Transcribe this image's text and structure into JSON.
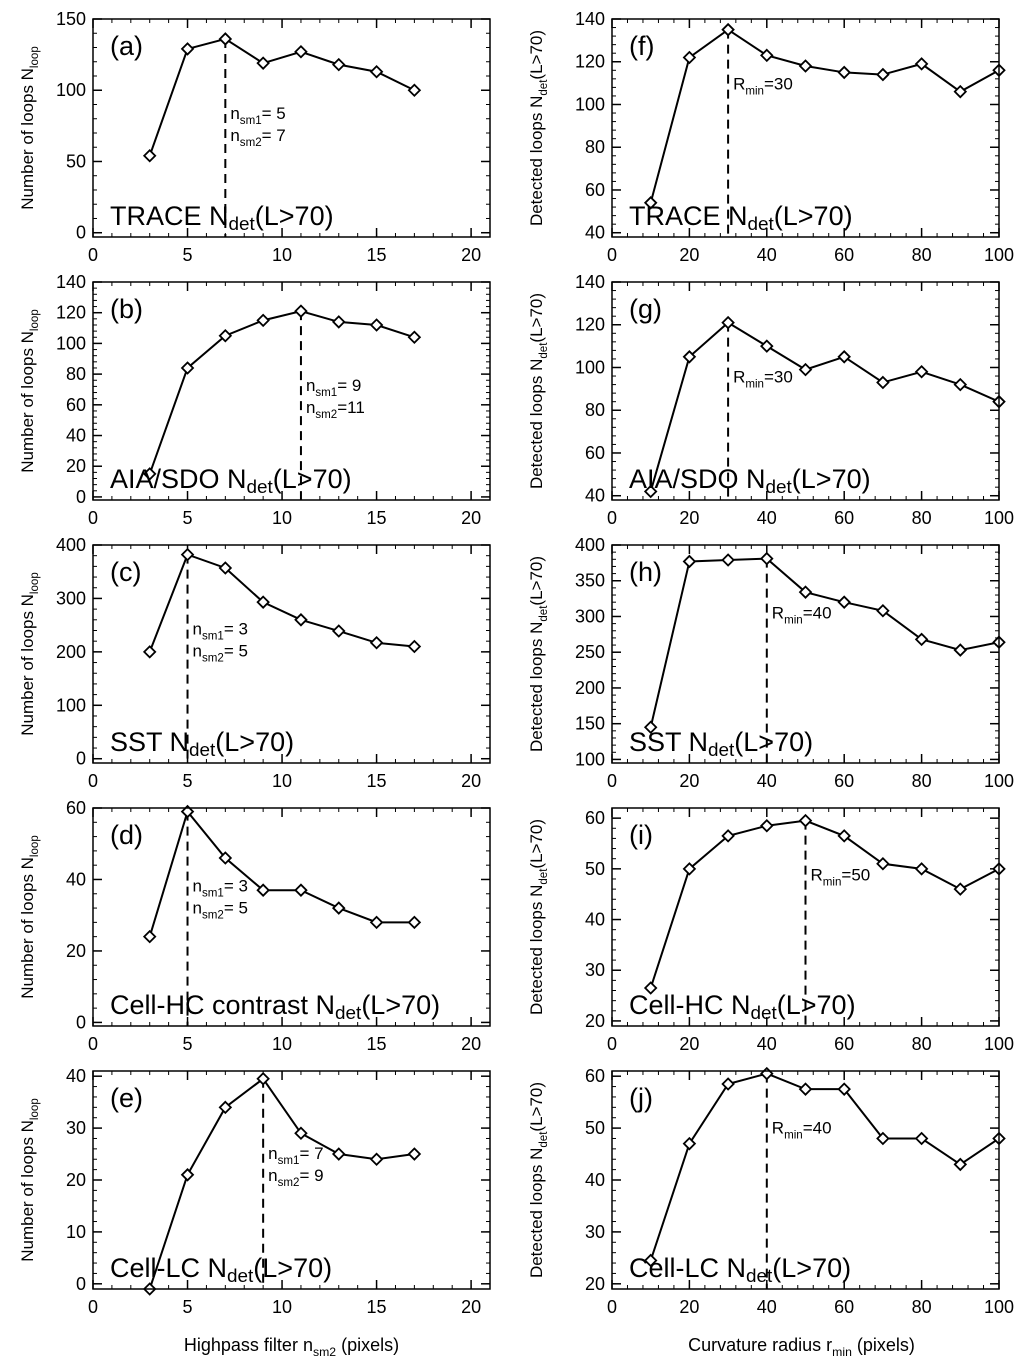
{
  "x_labels": {
    "left": {
      "text": "Highpass filter  n",
      "sub": "sm2",
      "suffix": " (pixels)"
    },
    "right": {
      "text": "Curvature radius  r",
      "sub": "min",
      "suffix": " (pixels)"
    }
  },
  "left_ylabel": {
    "text": "Number of loops  N",
    "sub": "loop"
  },
  "right_ylabel": {
    "text": "Detected loops  N",
    "sub": "det",
    "suffix": "(L>70)"
  },
  "chart_data": [
    {
      "type": "line",
      "panel": "(a)",
      "xlim": [
        0,
        21
      ],
      "xticks": [
        0,
        5,
        10,
        15,
        20
      ],
      "ylim": [
        -3,
        150
      ],
      "yticks": [
        0,
        50,
        100,
        150
      ],
      "x": [
        3,
        5,
        7,
        9,
        11,
        13,
        15,
        17
      ],
      "values": [
        54,
        129,
        136,
        119,
        127,
        118,
        113,
        100
      ],
      "marker_x": 7,
      "annotation": [
        {
          "t": "n",
          "s": "sm1",
          "r": "= 5"
        },
        {
          "t": "n",
          "s": "sm2",
          "r": "= 7"
        }
      ],
      "bottom_prefix": "TRACE  ",
      "title_n": "N",
      "title_sub": "det",
      "title_suffix": "(L>70)"
    },
    {
      "type": "line",
      "panel": "(f)",
      "xlim": [
        0,
        100
      ],
      "xticks": [
        0,
        20,
        40,
        60,
        80,
        100
      ],
      "ylim": [
        38,
        140
      ],
      "yticks": [
        40,
        60,
        80,
        100,
        120,
        140
      ],
      "x": [
        10,
        20,
        30,
        40,
        50,
        60,
        70,
        80,
        90,
        100
      ],
      "values": [
        54,
        122,
        135,
        123,
        118,
        115,
        114,
        119,
        106,
        116
      ],
      "marker_x": 30,
      "annotation": [
        {
          "t": "R",
          "s": "min",
          "r": "=30"
        }
      ],
      "bottom_prefix": "TRACE  ",
      "title_n": "N",
      "title_sub": "det",
      "title_suffix": "(L>70)"
    },
    {
      "type": "line",
      "panel": "(b)",
      "xlim": [
        0,
        21
      ],
      "xticks": [
        0,
        5,
        10,
        15,
        20
      ],
      "ylim": [
        -2,
        140
      ],
      "yticks": [
        0,
        20,
        40,
        60,
        80,
        100,
        120,
        140
      ],
      "x": [
        3,
        5,
        7,
        9,
        11,
        13,
        15,
        17
      ],
      "values": [
        15,
        84,
        105,
        115,
        121,
        114,
        112,
        104
      ],
      "marker_x": 11,
      "annotation": [
        {
          "t": "n",
          "s": "sm1",
          "r": "= 9"
        },
        {
          "t": "n",
          "s": "sm2",
          "r": "=11"
        }
      ],
      "bottom_prefix": "AIA/SDO  ",
      "title_n": "N",
      "title_sub": "det",
      "title_suffix": "(L>70)"
    },
    {
      "type": "line",
      "panel": "(g)",
      "xlim": [
        0,
        100
      ],
      "xticks": [
        0,
        20,
        40,
        60,
        80,
        100
      ],
      "ylim": [
        38,
        140
      ],
      "yticks": [
        40,
        60,
        80,
        100,
        120,
        140
      ],
      "x": [
        10,
        20,
        30,
        40,
        50,
        60,
        70,
        80,
        90,
        100
      ],
      "values": [
        42,
        105,
        121,
        110,
        99,
        105,
        93,
        98,
        92,
        84
      ],
      "marker_x": 30,
      "annotation": [
        {
          "t": "R",
          "s": "min",
          "r": "=30"
        }
      ],
      "bottom_prefix": "AIA/SDO  ",
      "title_n": "N",
      "title_sub": "det",
      "title_suffix": "(L>70)"
    },
    {
      "type": "line",
      "panel": "(c)",
      "xlim": [
        0,
        21
      ],
      "xticks": [
        0,
        5,
        10,
        15,
        20
      ],
      "ylim": [
        -8,
        400
      ],
      "yticks": [
        0,
        100,
        200,
        300,
        400
      ],
      "x": [
        3,
        5,
        7,
        9,
        11,
        13,
        15,
        17
      ],
      "values": [
        200,
        382,
        357,
        293,
        260,
        239,
        217,
        210
      ],
      "marker_x": 5,
      "annotation": [
        {
          "t": "n",
          "s": "sm1",
          "r": "= 3"
        },
        {
          "t": "n",
          "s": "sm2",
          "r": "= 5"
        }
      ],
      "bottom_prefix": "SST  ",
      "title_n": "N",
      "title_sub": "det",
      "title_suffix": "(L>70)"
    },
    {
      "type": "line",
      "panel": "(h)",
      "xlim": [
        0,
        100
      ],
      "xticks": [
        0,
        20,
        40,
        60,
        80,
        100
      ],
      "ylim": [
        95,
        400
      ],
      "yticks": [
        100,
        150,
        200,
        250,
        300,
        350,
        400
      ],
      "x": [
        10,
        20,
        30,
        40,
        50,
        60,
        70,
        80,
        90,
        100
      ],
      "values": [
        145,
        377,
        379,
        381,
        334,
        320,
        308,
        268,
        253,
        264
      ],
      "marker_x": 40,
      "annotation": [
        {
          "t": "R",
          "s": "min",
          "r": "=40"
        }
      ],
      "bottom_prefix": "SST  ",
      "title_n": "N",
      "title_sub": "det",
      "title_suffix": "(L>70)"
    },
    {
      "type": "line",
      "panel": "(d)",
      "xlim": [
        0,
        21
      ],
      "xticks": [
        0,
        5,
        10,
        15,
        20
      ],
      "ylim": [
        -1,
        60
      ],
      "yticks": [
        0,
        20,
        40,
        60
      ],
      "x": [
        3,
        5,
        7,
        9,
        11,
        13,
        15,
        17
      ],
      "values": [
        24,
        59,
        46,
        37,
        37,
        32,
        28,
        28
      ],
      "marker_x": 5,
      "annotation": [
        {
          "t": "n",
          "s": "sm1",
          "r": "= 3"
        },
        {
          "t": "n",
          "s": "sm2",
          "r": "= 5"
        }
      ],
      "bottom_prefix": "Cell-HC  contrast  ",
      "title_n": "N",
      "title_sub": "det",
      "title_suffix": "(L>70)"
    },
    {
      "type": "line",
      "panel": "(i)",
      "xlim": [
        0,
        100
      ],
      "xticks": [
        0,
        20,
        40,
        60,
        80,
        100
      ],
      "ylim": [
        19,
        62
      ],
      "yticks": [
        20,
        30,
        40,
        50,
        60
      ],
      "x": [
        10,
        20,
        30,
        40,
        50,
        60,
        70,
        80,
        90,
        100
      ],
      "values": [
        26.5,
        50,
        56.5,
        58.5,
        59.5,
        56.5,
        51,
        50,
        46,
        50
      ],
      "marker_x": 50,
      "annotation": [
        {
          "t": "R",
          "s": "min",
          "r": "=50"
        }
      ],
      "bottom_prefix": "Cell-HC  ",
      "title_n": "N",
      "title_sub": "det",
      "title_suffix": "(L>70)"
    },
    {
      "type": "line",
      "panel": "(e)",
      "xlim": [
        0,
        21
      ],
      "xticks": [
        0,
        5,
        10,
        15,
        20
      ],
      "ylim": [
        -1,
        41
      ],
      "yticks": [
        0,
        10,
        20,
        30,
        40
      ],
      "x": [
        3,
        5,
        7,
        9,
        11,
        13,
        15,
        17
      ],
      "values": [
        -1,
        21,
        34,
        39.5,
        29,
        25,
        24,
        25
      ],
      "marker_x": 9,
      "annotation": [
        {
          "t": "n",
          "s": "sm1",
          "r": "= 7"
        },
        {
          "t": "n",
          "s": "sm2",
          "r": "= 9"
        }
      ],
      "bottom_prefix": "Cell-LC  ",
      "title_n": "N",
      "title_sub": "det",
      "title_suffix": "(L>70)"
    },
    {
      "type": "line",
      "panel": "(j)",
      "xlim": [
        0,
        100
      ],
      "xticks": [
        0,
        20,
        40,
        60,
        80,
        100
      ],
      "ylim": [
        19,
        61
      ],
      "yticks": [
        20,
        30,
        40,
        50,
        60
      ],
      "x": [
        10,
        20,
        30,
        40,
        50,
        60,
        70,
        80,
        90,
        100
      ],
      "values": [
        24.5,
        47,
        58.5,
        60.5,
        57.5,
        57.5,
        48,
        48,
        43,
        48
      ],
      "marker_x": 40,
      "annotation": [
        {
          "t": "R",
          "s": "min",
          "r": "=40"
        }
      ],
      "bottom_prefix": "Cell-LC  ",
      "title_n": "N",
      "title_sub": "det",
      "title_suffix": "(L>70)"
    }
  ]
}
